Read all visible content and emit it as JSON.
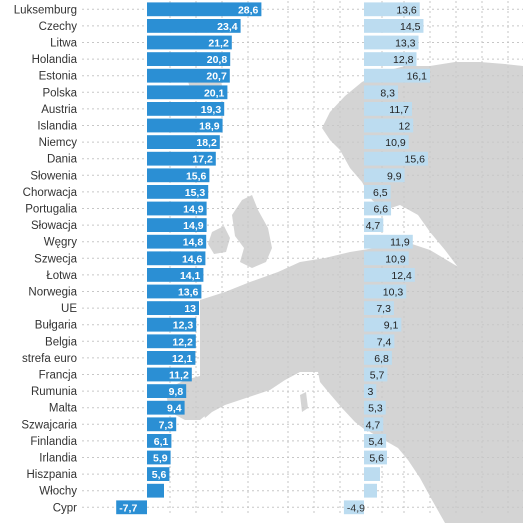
{
  "chart_data": {
    "type": "bar",
    "categories": [
      "Luksemburg",
      "Czechy",
      "Litwa",
      "Holandia",
      "Estonia",
      "Polska",
      "Austria",
      "Islandia",
      "Niemcy",
      "Dania",
      "Słowenia",
      "Chorwacja",
      "Portugalia",
      "Słowacja",
      "Węgry",
      "Szwecja",
      "Łotwa",
      "Norwegia",
      "UE",
      "Bułgaria",
      "Belgia",
      "strefa euro",
      "Francja",
      "Rumunia",
      "Malta",
      "Szwajcaria",
      "Finlandia",
      "Irlandia",
      "Hiszpania",
      "Włochy",
      "Cypr"
    ],
    "series": [
      {
        "values": [
          28.6,
          23.4,
          21.2,
          20.8,
          20.7,
          20.1,
          19.3,
          18.9,
          18.2,
          17.2,
          15.6,
          15.3,
          14.9,
          14.9,
          14.8,
          14.6,
          14.1,
          13.6,
          13,
          12.3,
          12.2,
          12.1,
          11.2,
          9.8,
          9.4,
          7.3,
          6.1,
          5.9,
          5.6,
          null,
          -7.7
        ],
        "labels": [
          "28,6",
          "23,4",
          "21,2",
          "20,8",
          "20,7",
          "20,1",
          "19,3",
          "18,9",
          "18,2",
          "17,2",
          "15,6",
          "15,3",
          "14,9",
          "14,9",
          "14,8",
          "14,6",
          "14,1",
          "13,6",
          "13",
          "12,3",
          "12,2",
          "12,1",
          "11,2",
          "9,8",
          "9,4",
          "7,3",
          "6,1",
          "5,9",
          "5,6",
          "",
          "-7,7"
        ],
        "color": "#2b8fd4"
      },
      {
        "values": [
          13.6,
          14.5,
          13.3,
          12.8,
          16.1,
          8.3,
          11.7,
          12,
          10.9,
          15.6,
          9.9,
          6.5,
          6.6,
          4.7,
          11.9,
          10.9,
          12.4,
          10.3,
          7.3,
          9.1,
          7.4,
          6.8,
          5.7,
          3,
          5.3,
          4.7,
          5.4,
          5.6,
          null,
          null,
          -4.9
        ],
        "labels": [
          "13,6",
          "14,5",
          "13,3",
          "12,8",
          "16,1",
          "8,3",
          "11,7",
          "12",
          "10,9",
          "15,6",
          "9,9",
          "6,5",
          "6,6",
          "4,7",
          "11,9",
          "10,9",
          "12,4",
          "10,3",
          "7,3",
          "9,1",
          "7,4",
          "6,8",
          "5,7",
          "3",
          "5,3",
          "4,7",
          "5,4",
          "5,6",
          "",
          "",
          "-4,9"
        ],
        "color": "#bcdcf0"
      }
    ],
    "grid": true,
    "background": "map of Europe (light grey)"
  }
}
